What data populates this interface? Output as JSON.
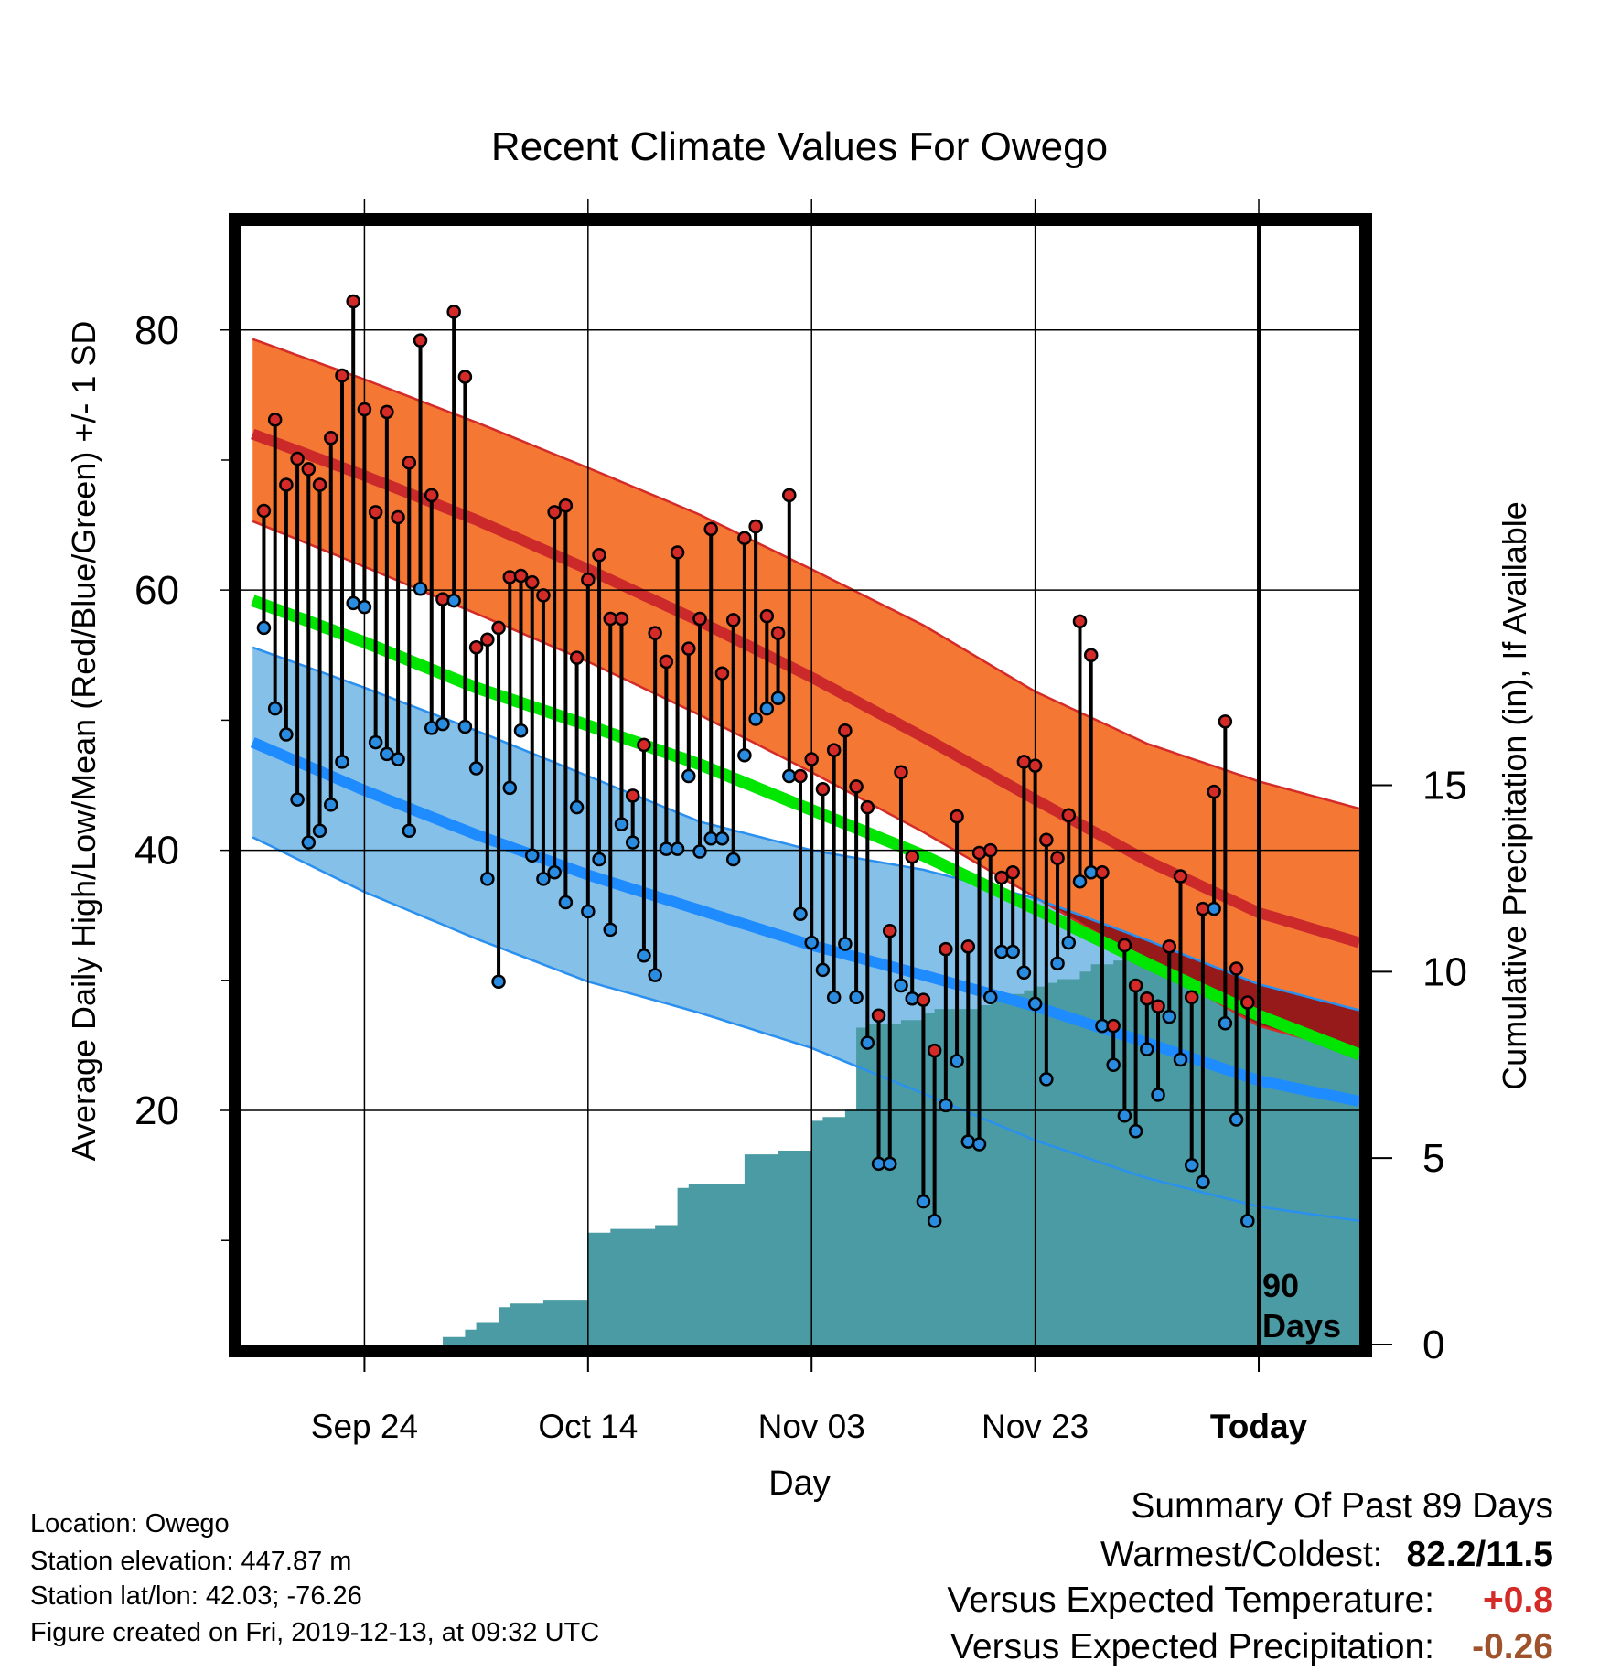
{
  "chart_data": {
    "type": "line",
    "title": "Recent Climate Values For Owego",
    "xlabel": "Day",
    "ylabel": "Average Daily High/Low/Mean (Red/Blue/Green) +/- 1 SD",
    "ylabel_right": "Cumulative Precipitation (in), If Available",
    "x_ticks": [
      "Sep 24",
      "Oct 14",
      "Nov 03",
      "Nov 23",
      "Today"
    ],
    "y_ticks": [
      "20",
      "40",
      "60",
      "80"
    ],
    "y2_ticks": [
      "0",
      "5",
      "10",
      "15"
    ],
    "ylim": [
      2,
      88
    ],
    "y2lim": [
      0,
      30
    ],
    "day_range": [
      -91,
      9
    ],
    "x_tick_days": [
      -80,
      -60,
      -40,
      -20,
      0
    ],
    "period_label": [
      "90",
      "Days"
    ],
    "grid": true,
    "colors": {
      "high_band": "#F47834",
      "high_band_edge": "#D42A28",
      "high_mean": "#CC2A2A",
      "low_band": "#85C0E8",
      "low_band_edge": "#2A90F0",
      "low_mean": "#1E8CFF",
      "mean_line": "#00E600",
      "overlap": "#961A1A",
      "precip": "#4A9BA3",
      "high_point": "#D42A28",
      "low_point": "#2A8CE0"
    },
    "normals": {
      "day": [
        -90,
        -80,
        -70,
        -60,
        -50,
        -40,
        -30,
        -20,
        -10,
        0,
        9
      ],
      "high_mean": [
        72.0,
        68.8,
        65.4,
        61.6,
        57.6,
        53.3,
        48.7,
        43.9,
        39.2,
        35.2,
        32.9
      ],
      "high_upper": [
        79.3,
        76.2,
        72.9,
        69.4,
        65.8,
        61.6,
        57.3,
        52.2,
        48.2,
        45.3,
        43.2
      ],
      "high_lower": [
        65.3,
        61.8,
        58.2,
        54.5,
        50.4,
        46.0,
        41.4,
        36.4,
        31.4,
        26.5,
        24.4
      ],
      "low_mean": [
        48.3,
        44.6,
        41.2,
        38.1,
        35.4,
        32.7,
        30.4,
        28.0,
        25.2,
        22.3,
        20.7
      ],
      "low_upper": [
        55.6,
        52.5,
        49.2,
        45.7,
        42.2,
        40.0,
        38.5,
        36.3,
        33.1,
        29.7,
        27.7
      ],
      "low_lower": [
        41.0,
        36.8,
        33.2,
        29.9,
        27.5,
        24.8,
        21.3,
        17.7,
        14.8,
        12.6,
        11.5
      ],
      "mean": [
        59.2,
        56.0,
        52.5,
        49.6,
        46.6,
        43.1,
        39.6,
        35.5,
        31.3,
        27.3,
        24.3
      ]
    },
    "series": [
      {
        "name": "High",
        "values": [
          66.1,
          73.1,
          68.1,
          70.1,
          69.3,
          68.1,
          71.7,
          76.5,
          82.2,
          73.9,
          66.0,
          73.7,
          65.6,
          69.8,
          79.2,
          67.3,
          59.3,
          81.4,
          76.4,
          55.6,
          56.2,
          57.1,
          61.0,
          61.1,
          60.6,
          59.6,
          66.0,
          66.5,
          54.8,
          60.8,
          62.7,
          57.8,
          57.8,
          44.2,
          48.1,
          56.7,
          54.5,
          62.9,
          55.5,
          57.8,
          64.7,
          53.6,
          57.7,
          64.0,
          64.9,
          58.0,
          56.7,
          67.3,
          45.7,
          47.0,
          44.7,
          47.7,
          49.2,
          44.9,
          43.3,
          27.3,
          33.8,
          46.0,
          39.5,
          28.5,
          24.6,
          32.4,
          42.6,
          32.6,
          39.8,
          40.0,
          37.9,
          38.3,
          46.8,
          46.5,
          40.8,
          39.4,
          42.7,
          57.6,
          55.0,
          38.3,
          26.5,
          32.7,
          29.6,
          28.6,
          28.0,
          32.6,
          38.0,
          28.7,
          35.5,
          44.5,
          49.9,
          30.9,
          28.3
        ]
      },
      {
        "name": "Low",
        "values": [
          57.1,
          50.9,
          48.9,
          43.9,
          40.6,
          41.5,
          43.5,
          46.8,
          59.0,
          58.7,
          48.3,
          47.4,
          47.0,
          41.5,
          60.1,
          49.4,
          49.7,
          59.2,
          49.5,
          46.3,
          37.8,
          29.9,
          44.8,
          49.2,
          39.6,
          37.8,
          38.3,
          36.0,
          43.3,
          35.3,
          39.3,
          33.9,
          42.0,
          40.6,
          31.9,
          30.4,
          40.1,
          40.1,
          45.7,
          39.9,
          40.9,
          40.9,
          39.3,
          47.3,
          50.1,
          50.9,
          51.7,
          45.7,
          35.1,
          32.9,
          30.8,
          28.7,
          32.8,
          28.7,
          25.2,
          15.9,
          15.9,
          29.6,
          28.6,
          13.0,
          11.5,
          20.4,
          23.8,
          17.6,
          17.4,
          28.7,
          32.2,
          32.2,
          30.6,
          28.2,
          22.4,
          31.3,
          32.9,
          37.6,
          38.3,
          26.5,
          23.5,
          19.6,
          18.4,
          24.7,
          21.2,
          27.2,
          23.9,
          15.8,
          14.5,
          35.5,
          26.7,
          19.3,
          11.5
        ]
      },
      {
        "name": "Cumulative Precipitation",
        "day": [
          -90,
          -74,
          -73,
          -71,
          -70,
          -68,
          -67,
          -65,
          -64,
          -60,
          -59,
          -58,
          -57,
          -55,
          -54,
          -52,
          -51,
          -49,
          -48,
          -46,
          -45,
          -44,
          -43,
          -40,
          -39,
          -38,
          -37,
          -36,
          -35,
          -33,
          -32,
          -30,
          -29,
          -26,
          -25,
          -24,
          -23,
          -22,
          -21,
          -20,
          -19,
          -18,
          -16,
          -15,
          -13,
          -12,
          -11,
          -10,
          -9,
          -5,
          -4,
          9
        ],
        "values": [
          0,
          0,
          0.2,
          0.4,
          0.6,
          1.0,
          1.1,
          1.1,
          1.2,
          3.0,
          3.0,
          3.1,
          3.1,
          3.1,
          3.2,
          4.2,
          4.3,
          4.3,
          4.3,
          5.1,
          5.1,
          5.1,
          5.2,
          6.0,
          6.1,
          6.1,
          6.3,
          8.5,
          8.6,
          8.6,
          8.7,
          8.9,
          9.0,
          9.0,
          9.1,
          9.2,
          9.3,
          9.4,
          9.5,
          9.6,
          9.7,
          9.8,
          10.0,
          10.2,
          10.3,
          10.5,
          11.0,
          11.6,
          11.8,
          11.9,
          12.1,
          12.1
        ]
      }
    ]
  },
  "footer": {
    "location": "Location: Owego",
    "elevation": "Station elevation: 447.87 m",
    "latlon": "Station lat/lon: 42.03; -76.26",
    "created": "Figure created on Fri, 2019-12-13, at 09:32 UTC"
  },
  "summary": {
    "title": "Summary Of Past 89 Days",
    "warm_cold_label": "Warmest/Coldest:",
    "warm_cold_value": "82.2/11.5",
    "temp_label": "Versus Expected Temperature:",
    "temp_value": "+0.8",
    "temp_color": "#D42A28",
    "precip_label": "Versus Expected Precipitation:",
    "precip_value": "-0.26",
    "precip_color": "#A0522D"
  }
}
